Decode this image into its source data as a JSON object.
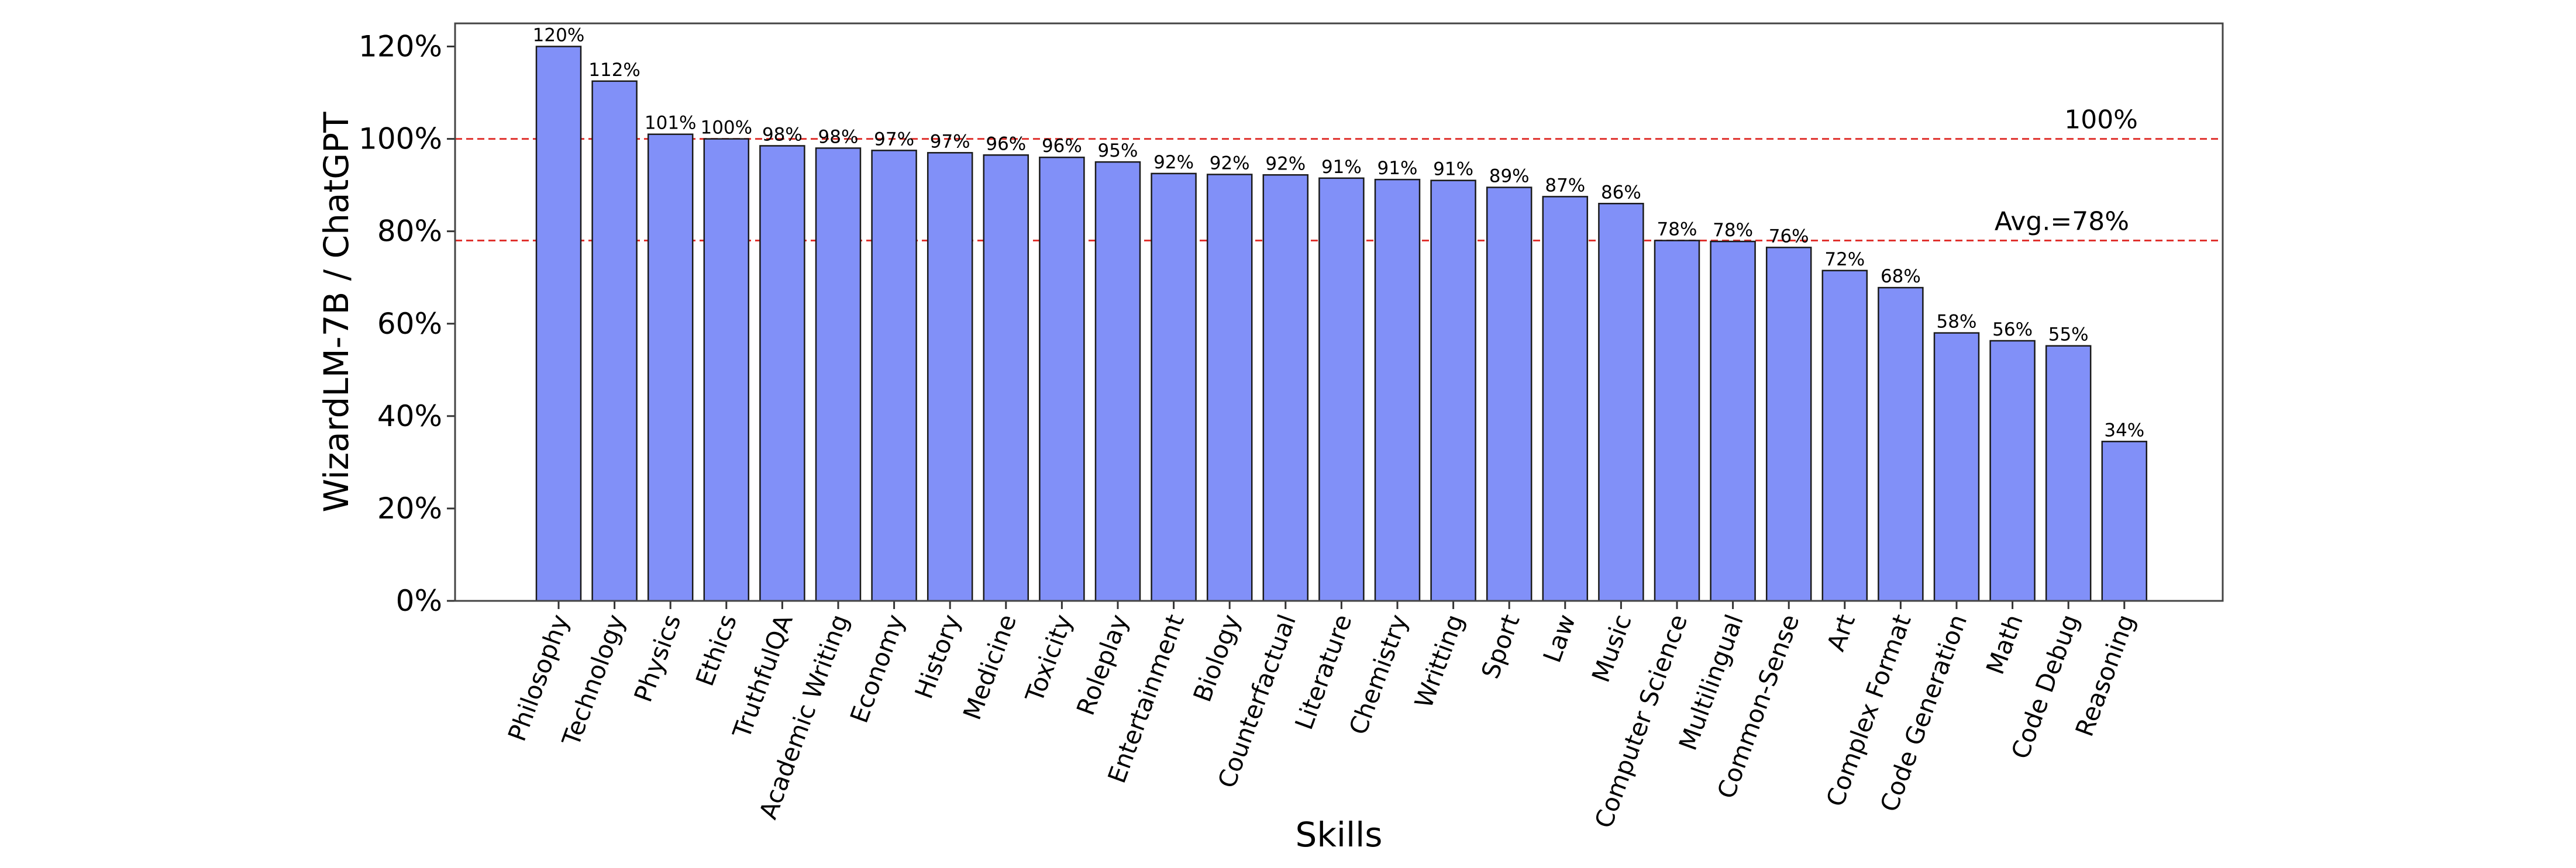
{
  "chart_data": {
    "type": "bar",
    "xlabel": "Skills",
    "ylabel": "WizardLM-7B / ChatGPT",
    "ylim": [
      0,
      125
    ],
    "y_ticks": [
      0,
      20,
      40,
      60,
      80,
      100,
      120
    ],
    "y_tick_labels": [
      "0%",
      "20%",
      "40%",
      "60%",
      "80%",
      "100%",
      "120%"
    ],
    "categories": [
      "Philosophy",
      "Technology",
      "Physics",
      "Ethics",
      "TruthfulQA",
      "Academic Writing",
      "Economy",
      "History",
      "Medicine",
      "Toxicity",
      "Roleplay",
      "Entertainment",
      "Biology",
      "Counterfactual",
      "Literature",
      "Chemistry",
      "Writting",
      "Sport",
      "Law",
      "Music",
      "Computer Science",
      "Multilingual",
      "Common-Sense",
      "Art",
      "Complex Format",
      "Code Generation",
      "Math",
      "Code Debug",
      "Reasoning"
    ],
    "values": [
      120,
      112.5,
      101,
      100,
      98.5,
      98,
      97.5,
      97,
      96.5,
      96,
      95,
      92.5,
      92.3,
      92.2,
      91.5,
      91.2,
      91,
      89.5,
      87.5,
      86,
      78,
      77.8,
      76.5,
      71.5,
      67.8,
      58,
      56.3,
      55.2,
      34.5
    ],
    "value_labels": [
      "120%",
      "112%",
      "101%",
      "100%",
      "98%",
      "98%",
      "97%",
      "97%",
      "96%",
      "96%",
      "95%",
      "92%",
      "92%",
      "92%",
      "91%",
      "91%",
      "91%",
      "89%",
      "87%",
      "86%",
      "78%",
      "78%",
      "76%",
      "72%",
      "68%",
      "58%",
      "56%",
      "55%",
      "34%"
    ],
    "reference_lines": [
      {
        "value": 100,
        "label": "100%",
        "color": "#e0322e"
      },
      {
        "value": 78,
        "label": "Avg.=78%",
        "color": "#e0322e"
      }
    ],
    "bar_color": "#8190f8",
    "bar_edge_color": "#1a1a1a",
    "grid": false
  }
}
